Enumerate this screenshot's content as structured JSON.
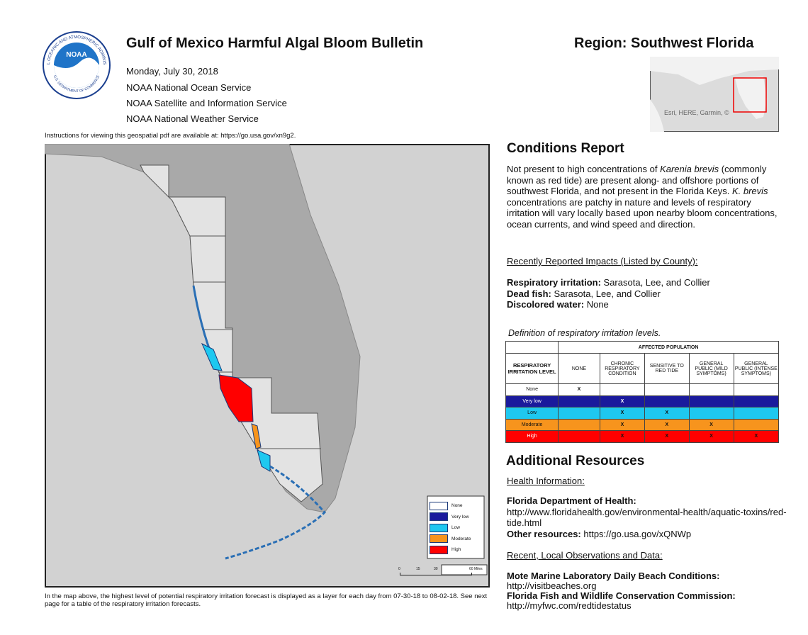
{
  "header": {
    "logo_text": "NOAA",
    "logo_ring": "NATIONAL OCEANIC AND ATMOSPHERIC ADMINISTRATION",
    "logo_ring_bottom": "U.S. DEPARTMENT OF COMMERCE",
    "title": "Gulf of Mexico Harmful Algal Bloom Bulletin",
    "lines": [
      "Monday, July 30, 2018",
      "NOAA National Ocean Service",
      "NOAA Satellite and Information Service",
      "NOAA National Weather Service"
    ],
    "region": "Region: Southwest Florida",
    "inset_attribution": "Esri, HERE, Garmin, ©"
  },
  "instructions": "Instructions for viewing this geospatial pdf are available at: https://go.usa.gov/xn9g2.",
  "map": {
    "legend": [
      {
        "label": "None",
        "color": "#ffffff"
      },
      {
        "label": "Very low",
        "color": "#1a1a9c"
      },
      {
        "label": "Low",
        "color": "#1ec8f0"
      },
      {
        "label": "Moderate",
        "color": "#f7941d"
      },
      {
        "label": "High",
        "color": "#ff0000"
      }
    ],
    "scale": [
      "0",
      "15",
      "30",
      "60 Miles"
    ],
    "caption": "In the map above, the highest level of potential respiratory irritation forecast is displayed as a layer for each day from 07-30-18 to 08-02-18. See next page for a table of the respiratory irritation forecasts."
  },
  "conditions": {
    "heading": "Conditions Report",
    "paragraph": [
      {
        "text": "Not present to high concentrations of ",
        "italic": false
      },
      {
        "text": "Karenia brevis",
        "italic": true
      },
      {
        "text": " (commonly known as red tide) are present along- and offshore portions of southwest Florida, and not present in the Florida Keys. ",
        "italic": false
      },
      {
        "text": "K. brevis",
        "italic": true
      },
      {
        "text": " concentrations are patchy in nature and levels of respiratory irritation will vary locally based upon nearby bloom concentrations, ocean currents, and wind speed and direction.",
        "italic": false
      }
    ],
    "impacts_heading": "Recently Reported Impacts (Listed by County):",
    "impacts": [
      {
        "label": "Respiratory irritation:",
        "text": " Sarasota, Lee, and Collier"
      },
      {
        "label": "Dead fish:",
        "text": " Sarasota, Lee, and Collier"
      },
      {
        "label": "Discolored water:",
        "text": " None"
      }
    ]
  },
  "definition": {
    "caption": "Definition of respiratory irritation levels.",
    "group_header": "AFFECTED POPULATION",
    "columns": [
      "RESPIRATORY IRRITATION LEVEL",
      "NONE",
      "CHRONIC RESPIRATORY CONDITION",
      "SENSITIVE TO RED TIDE",
      "GENERAL PUBLIC (MILD SYMPTOMS)",
      "GENERAL PUBLIC (INTENSE SYMPTOMS)"
    ],
    "rows": [
      {
        "level": "None",
        "color": "#ffffff",
        "cells": [
          "X",
          null,
          null,
          null,
          null
        ]
      },
      {
        "level": "Very low",
        "color": "#1a1a9c",
        "cells": [
          null,
          "X",
          null,
          null,
          null
        ]
      },
      {
        "level": "Low",
        "color": "#1ec8f0",
        "cells": [
          null,
          "X",
          "X",
          null,
          null
        ]
      },
      {
        "level": "Moderate",
        "color": "#f7941d",
        "cells": [
          null,
          "X",
          "X",
          "X",
          null
        ]
      },
      {
        "level": "High",
        "color": "#ff0000",
        "cells": [
          null,
          "X",
          "X",
          "X",
          "X"
        ]
      }
    ]
  },
  "resources": {
    "heading": "Additional Resources",
    "health_heading": "Health Information:",
    "doh_label": "Florida Department of Health:",
    "doh_url": "http://www.floridahealth.gov/environmental-health/aquatic-toxins/red-tide.html",
    "other_label": "Other resources:",
    "other_url": " https://go.usa.gov/xQNWp",
    "recent_heading": "Recent, Local Observations and Data:",
    "mote_label": "Mote Marine Laboratory Daily Beach Conditions:",
    "mote_url": "http://visitbeaches.org",
    "fwc_label": "Florida Fish and Wildlife Conservation Commission:",
    "fwc_url": "http://myfwc.com/redtidestatus"
  }
}
